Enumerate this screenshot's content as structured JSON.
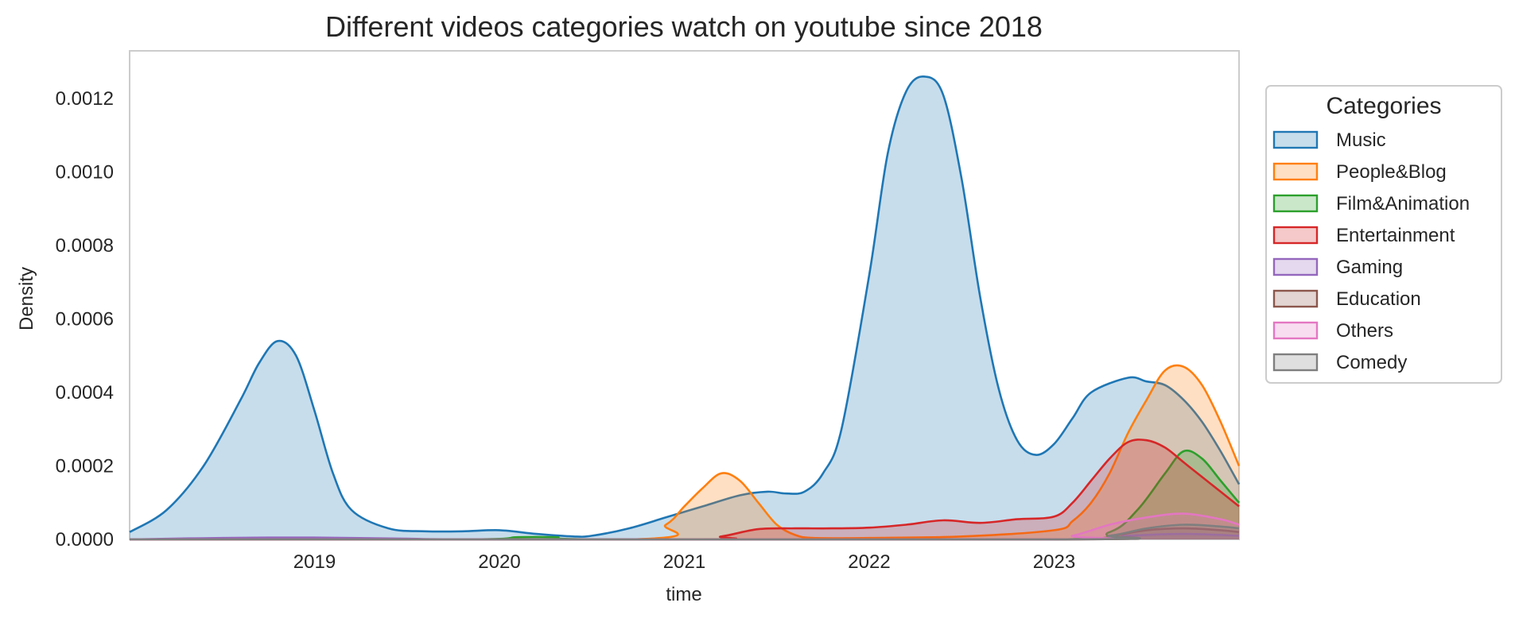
{
  "chart_data": {
    "type": "area",
    "kind": "kde-density",
    "title": "Different videos categories watch on youtube since 2018",
    "xlabel": "time",
    "ylabel": "Density",
    "x_unit": "year",
    "xlim": [
      2018.0,
      2024.0
    ],
    "ylim": [
      0,
      0.00133
    ],
    "x_ticks": [
      2019,
      2020,
      2021,
      2022,
      2023
    ],
    "x_tick_labels": [
      "2019",
      "2020",
      "2021",
      "2022",
      "2023"
    ],
    "y_ticks": [
      0,
      0.0002,
      0.0004,
      0.0006,
      0.0008,
      0.001,
      0.0012
    ],
    "y_tick_labels": [
      "0.0000",
      "0.0002",
      "0.0004",
      "0.0006",
      "0.0008",
      "0.0010",
      "0.0012"
    ],
    "grid": false,
    "legend": {
      "title": "Categories",
      "position": "outside-right"
    },
    "series": [
      {
        "name": "Music",
        "color": "#1f77b4",
        "x": [
          2018.0,
          2018.2,
          2018.4,
          2018.6,
          2018.7,
          2018.8,
          2018.9,
          2019.0,
          2019.1,
          2019.2,
          2019.4,
          2019.6,
          2019.8,
          2020.0,
          2020.2,
          2020.4,
          2020.5,
          2020.7,
          2020.9,
          2021.1,
          2021.3,
          2021.45,
          2021.55,
          2021.65,
          2021.75,
          2021.85,
          2022.0,
          2022.1,
          2022.2,
          2022.3,
          2022.4,
          2022.5,
          2022.6,
          2022.7,
          2022.8,
          2022.9,
          2023.0,
          2023.1,
          2023.2,
          2023.4,
          2023.5,
          2023.6,
          2023.7,
          2023.8,
          2023.9,
          2024.0
        ],
        "y": [
          2e-05,
          8e-05,
          0.0002,
          0.00038,
          0.00048,
          0.00054,
          0.0005,
          0.00035,
          0.00018,
          8e-05,
          3e-05,
          2.2e-05,
          2.2e-05,
          2.5e-05,
          1.5e-05,
          8e-06,
          1e-05,
          3e-05,
          6e-05,
          9e-05,
          0.00012,
          0.00013,
          0.000125,
          0.00013,
          0.00018,
          0.0003,
          0.00072,
          0.00105,
          0.00122,
          0.00126,
          0.00121,
          0.00098,
          0.00066,
          0.00041,
          0.00027,
          0.00023,
          0.00026,
          0.00033,
          0.0004,
          0.00044,
          0.00043,
          0.00042,
          0.00038,
          0.00032,
          0.00024,
          0.00015
        ]
      },
      {
        "name": "People&Blog",
        "color": "#ff7f0e",
        "x": [
          2018.0,
          2020.7,
          2020.9,
          2021.0,
          2021.1,
          2021.2,
          2021.3,
          2021.4,
          2021.5,
          2021.6,
          2021.7,
          2022.0,
          2022.5,
          2023.0,
          2023.1,
          2023.2,
          2023.3,
          2023.4,
          2023.5,
          2023.6,
          2023.7,
          2023.8,
          2023.9,
          2024.0
        ],
        "y": [
          0.0,
          0.0,
          4e-05,
          9e-05,
          0.00014,
          0.00018,
          0.00016,
          0.0001,
          4e-05,
          1.2e-05,
          4e-06,
          4e-06,
          8e-06,
          2.5e-05,
          5e-05,
          0.0001,
          0.00018,
          0.00029,
          0.00038,
          0.00046,
          0.00047,
          0.00042,
          0.00032,
          0.0002
        ]
      },
      {
        "name": "Film&Animation",
        "color": "#2ca02c",
        "x": [
          2018.0,
          2019.8,
          2020.1,
          2020.3,
          2020.6,
          2023.0,
          2023.3,
          2023.45,
          2023.6,
          2023.7,
          2023.8,
          2023.9,
          2024.0
        ],
        "y": [
          0.0,
          0.0,
          6e-06,
          6e-06,
          0.0,
          0.0,
          2e-05,
          8e-05,
          0.00018,
          0.00024,
          0.00022,
          0.00016,
          0.0001
        ]
      },
      {
        "name": "Entertainment",
        "color": "#d62728",
        "x": [
          2018.0,
          2021.0,
          2021.2,
          2021.4,
          2021.6,
          2021.8,
          2022.0,
          2022.2,
          2022.4,
          2022.6,
          2022.8,
          2023.0,
          2023.1,
          2023.2,
          2023.3,
          2023.4,
          2023.5,
          2023.6,
          2023.7,
          2023.8,
          2023.9,
          2024.0
        ],
        "y": [
          0.0,
          0.0,
          8e-06,
          2.8e-05,
          3e-05,
          3e-05,
          3.2e-05,
          4e-05,
          5.2e-05,
          4.5e-05,
          5.5e-05,
          6.2e-05,
          0.0001,
          0.00016,
          0.00022,
          0.000265,
          0.00027,
          0.00025,
          0.00021,
          0.00017,
          0.00013,
          9e-05
        ]
      },
      {
        "name": "Gaming",
        "color": "#9467bd",
        "x": [
          2018.0,
          2018.5,
          2019.0,
          2019.5,
          2020.0,
          2023.0,
          2023.4,
          2023.7,
          2024.0
        ],
        "y": [
          0.0,
          4e-06,
          5e-06,
          2e-06,
          0.0,
          0.0,
          1e-05,
          1.5e-05,
          1e-05
        ]
      },
      {
        "name": "Education",
        "color": "#8c564b",
        "x": [
          2018.0,
          2023.0,
          2023.3,
          2023.5,
          2023.7,
          2023.9,
          2024.0
        ],
        "y": [
          0.0,
          0.0,
          1e-05,
          2.5e-05,
          3e-05,
          2.5e-05,
          2e-05
        ]
      },
      {
        "name": "Others",
        "color": "#e377c2",
        "x": [
          2018.0,
          2022.9,
          2023.1,
          2023.3,
          2023.5,
          2023.7,
          2023.9,
          2024.0
        ],
        "y": [
          0.0,
          0.0,
          1e-05,
          4e-05,
          6e-05,
          7e-05,
          5.5e-05,
          4e-05
        ]
      },
      {
        "name": "Comedy",
        "color": "#7f7f7f",
        "x": [
          2018.0,
          2023.0,
          2023.3,
          2023.5,
          2023.7,
          2023.9,
          2024.0
        ],
        "y": [
          0.0,
          0.0,
          1e-05,
          3e-05,
          4e-05,
          3.5e-05,
          3e-05
        ]
      }
    ]
  }
}
